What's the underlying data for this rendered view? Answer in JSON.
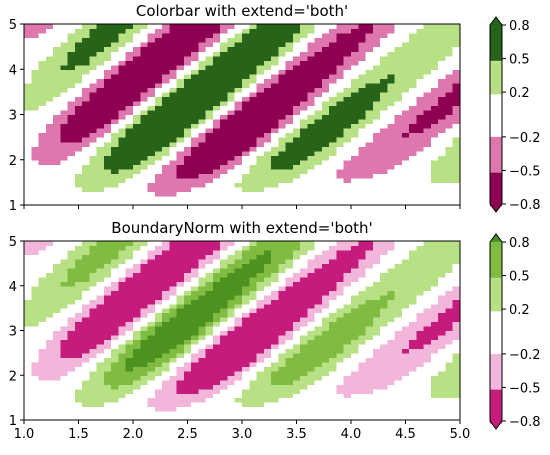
{
  "chart_data": [
    {
      "type": "heatmap",
      "title": "Colorbar with extend='both'",
      "xlim": [
        1.0,
        5.0
      ],
      "ylim": [
        1,
        5
      ],
      "x_ticks": [
        1.0,
        1.5,
        2.0,
        2.5,
        3.0,
        3.5,
        4.0,
        4.5,
        5.0
      ],
      "x_tick_labels": [
        "",
        "",
        "",
        "",
        "",
        "",
        "",
        "",
        ""
      ],
      "y_ticks": [
        1,
        2,
        3,
        4,
        5
      ],
      "y_tick_labels": [
        "1",
        "2",
        "3",
        "4",
        "5"
      ],
      "levels": [
        -0.8,
        -0.5,
        -0.2,
        0.2,
        0.5,
        0.8
      ],
      "colorbar_tick_labels": [
        "−0.8",
        "−0.5",
        "−0.2",
        "0.2",
        "0.5",
        "0.8"
      ],
      "colors": [
        "#8e0152",
        "#de77ae",
        "#f7f7f7",
        "#b8e186",
        "#4d9221",
        "#276419"
      ],
      "bin_colors": [
        "#8e0152",
        "#de77ae",
        "#ffffff",
        "#b8e186",
        "#276419"
      ],
      "extend": "both",
      "colorbar_position": "right"
    },
    {
      "type": "heatmap",
      "title": "BoundaryNorm with extend='both'",
      "xlim": [
        1.0,
        5.0
      ],
      "ylim": [
        1,
        5
      ],
      "x_ticks": [
        1.0,
        1.5,
        2.0,
        2.5,
        3.0,
        3.5,
        4.0,
        4.5,
        5.0
      ],
      "x_tick_labels": [
        "1.0",
        "1.5",
        "2.0",
        "2.5",
        "3.0",
        "3.5",
        "4.0",
        "4.5",
        "5.0"
      ],
      "y_ticks": [
        1,
        2,
        3,
        4,
        5
      ],
      "y_tick_labels": [
        "1",
        "2",
        "3",
        "4",
        "5"
      ],
      "levels": [
        -0.8,
        -0.5,
        -0.2,
        0.2,
        0.5,
        0.8
      ],
      "colorbar_tick_labels": [
        "−0.8",
        "−0.5",
        "−0.2",
        "0.2",
        "0.5",
        "0.8"
      ],
      "colors": [
        "#8e0152",
        "#de77ae",
        "#f1b6da",
        "#fde0ef",
        "#f7f7f7",
        "#e6f5d0",
        "#b8e186",
        "#7fbc41",
        "#4d9221",
        "#276419"
      ],
      "bin_colors": [
        "#c51b7d",
        "#f1b6da",
        "#ffffff",
        "#b8e186",
        "#7fbc41"
      ],
      "under_color": "#c51b7d",
      "over_color": "#4d9221",
      "extend": "both",
      "colorbar_position": "right"
    }
  ]
}
